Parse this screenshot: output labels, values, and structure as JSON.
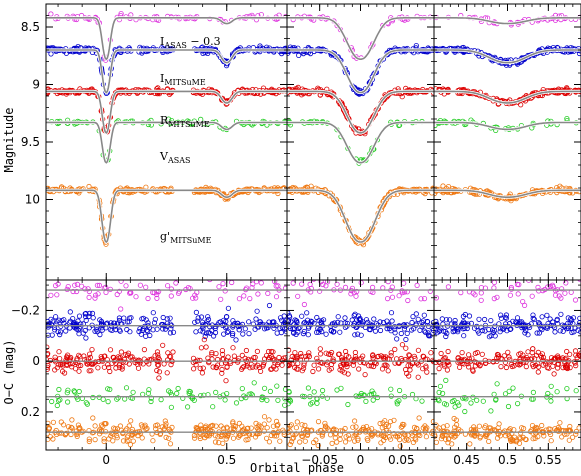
{
  "chart_data": {
    "type": "scatter",
    "xlabel": "Orbital phase",
    "ylabel_top": "Magnitude",
    "ylabel_bottom": "O−C (mag)",
    "panels": [
      {
        "id": "full",
        "xlim": [
          -0.25,
          0.75
        ],
        "xticks": [
          0,
          0.5
        ],
        "xtick_labels": [
          "0",
          "0.5"
        ]
      },
      {
        "id": "primary-zoom",
        "xlim": [
          -0.09,
          0.09
        ],
        "xticks": [
          -0.05,
          0,
          0.05
        ],
        "xtick_labels": [
          "−0.05",
          "0",
          "0.05"
        ]
      },
      {
        "id": "secondary-zoom",
        "xlim": [
          0.41,
          0.59
        ],
        "xticks": [
          0.45,
          0.5,
          0.55
        ],
        "xtick_labels": [
          "0.45",
          "0.5",
          "0.55"
        ]
      }
    ],
    "magnitude_axis": {
      "ylim": [
        10.7,
        8.3
      ],
      "inverted": true,
      "ticks": [
        8.5,
        9,
        9.5,
        10
      ],
      "tick_labels": [
        "8.5",
        "9",
        "9.5",
        "10"
      ]
    },
    "residual_axis": {
      "ylim": [
        0.35,
        -0.32
      ],
      "inverted": true,
      "ticks": [
        -0.2,
        0,
        0.2
      ],
      "tick_labels": [
        "−0.2",
        "0",
        "0.2"
      ]
    },
    "series": [
      {
        "name": "I",
        "sub": "ASAS",
        "suffix": " − 0.3",
        "color": "#dd33dd",
        "baseline": 8.42,
        "primary_depth": 0.36,
        "secondary_depth": 0.05,
        "primary_width": 0.022,
        "secondary_width": 0.03,
        "scatter": 0.012,
        "offset_residual": -0.28,
        "residual_scatter": 0.025,
        "density": "sparse"
      },
      {
        "name": "I",
        "sub": "MITSuME",
        "suffix": "",
        "color": "#0000cc",
        "baseline": 8.7,
        "primary_depth": 0.37,
        "secondary_depth": 0.11,
        "primary_width": 0.022,
        "secondary_width": 0.03,
        "scatter": 0.012,
        "offset_residual": -0.14,
        "residual_scatter": 0.022,
        "density": "dense"
      },
      {
        "name": "R",
        "sub": "MITSuME",
        "suffix": "",
        "color": "#dd0000",
        "baseline": 9.06,
        "primary_depth": 0.36,
        "secondary_depth": 0.1,
        "primary_width": 0.022,
        "secondary_width": 0.03,
        "scatter": 0.012,
        "offset_residual": 0.0,
        "residual_scatter": 0.022,
        "density": "dense"
      },
      {
        "name": "V",
        "sub": "ASAS",
        "suffix": "",
        "color": "#22cc22",
        "baseline": 9.33,
        "primary_depth": 0.35,
        "secondary_depth": 0.06,
        "primary_width": 0.022,
        "secondary_width": 0.03,
        "scatter": 0.012,
        "offset_residual": 0.14,
        "residual_scatter": 0.02,
        "density": "sparse"
      },
      {
        "name": "g'",
        "sub": "MITSuME",
        "suffix": "",
        "color": "#ee7711",
        "baseline": 9.92,
        "primary_depth": 0.45,
        "secondary_depth": 0.06,
        "primary_width": 0.024,
        "secondary_width": 0.03,
        "scatter": 0.012,
        "offset_residual": 0.28,
        "residual_scatter": 0.022,
        "density": "dense"
      }
    ],
    "model_color": "#888888",
    "grid": false,
    "legend": "inline labels"
  }
}
